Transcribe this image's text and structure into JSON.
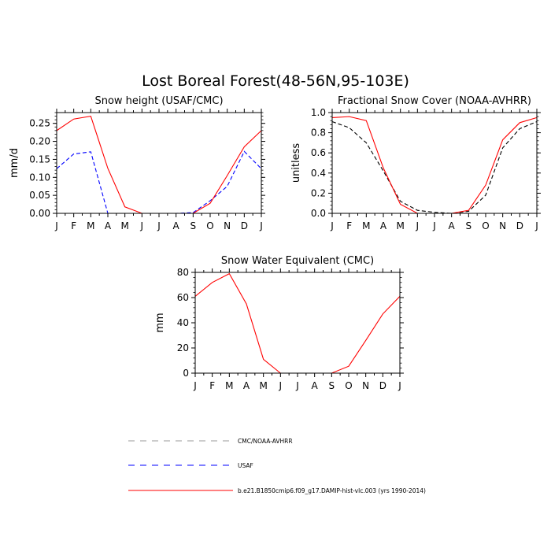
{
  "figure": {
    "title": "Lost Boreal Forest(48-56N,95-103E)"
  },
  "chart_data": [
    {
      "type": "line",
      "title": "Snow height (USAF/CMC)",
      "xlabel": "",
      "ylabel": "mm/d",
      "x_ticks": [
        "J",
        "F",
        "M",
        "A",
        "M",
        "J",
        "J",
        "A",
        "S",
        "O",
        "N",
        "D",
        "J"
      ],
      "y_ticks": [
        "0.00",
        "0.05",
        "0.10",
        "0.15",
        "0.20",
        "0.25"
      ],
      "ylim": [
        0,
        0.28
      ],
      "series": [
        {
          "name": "CMC/NOAA-AVHRR",
          "style": "dashed",
          "color": "#000000",
          "values": [
            0,
            0,
            0,
            0,
            0,
            0,
            0,
            0,
            0,
            0,
            0,
            0,
            0
          ]
        },
        {
          "name": "USAF",
          "style": "dashed",
          "color": "#0000ff",
          "values": [
            0.124,
            0.165,
            0.171,
            0.0,
            0.0,
            0.0,
            0.0,
            0.0,
            0.002,
            0.035,
            0.075,
            0.172,
            0.124
          ]
        },
        {
          "name": "b.e21.B1850cmip6.f09_g17.DAMIP-hist-vlc.003 (yrs 1990-2014)",
          "style": "solid",
          "color": "#ff0000",
          "values": [
            0.23,
            0.262,
            0.27,
            0.125,
            0.018,
            0.0,
            0.0,
            0.0,
            0.0,
            0.028,
            0.105,
            0.185,
            0.23
          ]
        }
      ]
    },
    {
      "type": "line",
      "title": "Fractional Snow Cover (NOAA-AVHRR)",
      "xlabel": "",
      "ylabel": "unitless",
      "x_ticks": [
        "J",
        "F",
        "M",
        "A",
        "M",
        "J",
        "J",
        "A",
        "S",
        "O",
        "N",
        "D",
        "J"
      ],
      "y_ticks": [
        "0.0",
        "0.2",
        "0.4",
        "0.6",
        "0.8",
        "1.0"
      ],
      "ylim": [
        0,
        1.0
      ],
      "series": [
        {
          "name": "CMC/NOAA-AVHRR",
          "style": "dashed",
          "color": "#000000",
          "values": [
            0.91,
            0.85,
            0.7,
            0.42,
            0.12,
            0.03,
            0.01,
            0.0,
            0.02,
            0.18,
            0.65,
            0.84,
            0.91
          ]
        },
        {
          "name": "b.e21.B1850cmip6.f09_g17.DAMIP-hist-vlc.003 (yrs 1990-2014)",
          "style": "solid",
          "color": "#ff0000",
          "values": [
            0.95,
            0.96,
            0.92,
            0.45,
            0.09,
            0.0,
            0.0,
            0.0,
            0.03,
            0.28,
            0.73,
            0.9,
            0.95
          ]
        }
      ]
    },
    {
      "type": "line",
      "title": "Snow Water Equivalent (CMC)",
      "xlabel": "",
      "ylabel": "mm",
      "x_ticks": [
        "J",
        "F",
        "M",
        "A",
        "M",
        "J",
        "J",
        "A",
        "S",
        "O",
        "N",
        "D",
        "J"
      ],
      "y_ticks": [
        "0",
        "20",
        "40",
        "60",
        "80"
      ],
      "ylim": [
        0,
        80
      ],
      "series": [
        {
          "name": "CMC/NOAA-AVHRR",
          "style": "dashed",
          "color": "#000000",
          "values": [
            0,
            0,
            0,
            0,
            0,
            0,
            0,
            0,
            0,
            0,
            0,
            0,
            0
          ]
        },
        {
          "name": "b.e21.B1850cmip6.f09_g17.DAMIP-hist-vlc.003 (yrs 1990-2014)",
          "style": "solid",
          "color": "#ff0000",
          "values": [
            61,
            72,
            79,
            55,
            11,
            0,
            0,
            0,
            0,
            5.5,
            26,
            47,
            61
          ]
        }
      ]
    }
  ],
  "legend": {
    "items": [
      {
        "label": "CMC/NOAA-AVHRR",
        "style": "dashed",
        "color": "#999999"
      },
      {
        "label": "USAF",
        "style": "dashed",
        "color": "#0000ff"
      },
      {
        "label": "b.e21.B1850cmip6.f09_g17.DAMIP-hist-vlc.003 (yrs 1990-2014)",
        "style": "solid",
        "color": "#ff0000"
      }
    ]
  }
}
